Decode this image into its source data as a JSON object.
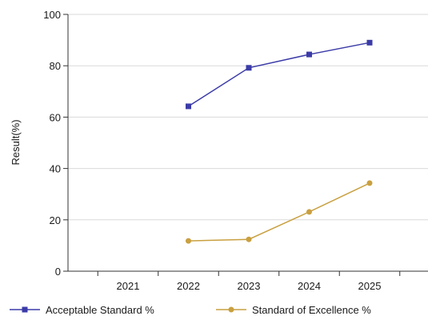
{
  "chart_data": {
    "type": "line",
    "title": "",
    "xlabel": "",
    "ylabel": "Result(%)",
    "categories": [
      "2021",
      "2022",
      "2023",
      "2024",
      "2025"
    ],
    "ylim": [
      0,
      100
    ],
    "yticks": [
      0,
      20,
      40,
      60,
      80,
      100
    ],
    "grid": "horizontal",
    "legend_position": "bottom",
    "series": [
      {
        "name": "Acceptable Standard %",
        "values": [
          null,
          64.2,
          79.2,
          84.4,
          89.0
        ],
        "color": "#3b3ba8",
        "marker": "square"
      },
      {
        "name": "Standard of Excellence %",
        "values": [
          null,
          11.8,
          12.4,
          23.1,
          34.3
        ],
        "color": "#c9a040",
        "marker": "circle"
      }
    ]
  }
}
